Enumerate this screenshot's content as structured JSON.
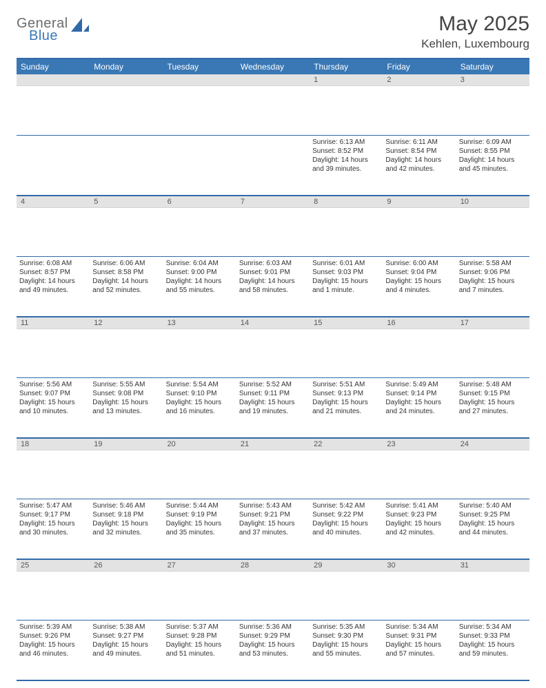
{
  "logo": {
    "top": "General",
    "bottom": "Blue"
  },
  "title": "May 2025",
  "location": "Kehlen, Luxembourg",
  "colors": {
    "headerBar": "#3a78b5",
    "headerText": "#ffffff",
    "gridLine": "#2f6aa8",
    "dayNumBg": "#e3e3e3",
    "dayNumText": "#555555",
    "bodyText": "#333333",
    "logoGray": "#6b6b6b",
    "logoBlue": "#3a78b5"
  },
  "weekdays": [
    "Sunday",
    "Monday",
    "Tuesday",
    "Wednesday",
    "Thursday",
    "Friday",
    "Saturday"
  ],
  "weeks": [
    [
      null,
      null,
      null,
      null,
      {
        "n": "1",
        "sr": "6:13 AM",
        "ss": "8:52 PM",
        "dl": "14 hours and 39 minutes."
      },
      {
        "n": "2",
        "sr": "6:11 AM",
        "ss": "8:54 PM",
        "dl": "14 hours and 42 minutes."
      },
      {
        "n": "3",
        "sr": "6:09 AM",
        "ss": "8:55 PM",
        "dl": "14 hours and 45 minutes."
      }
    ],
    [
      {
        "n": "4",
        "sr": "6:08 AM",
        "ss": "8:57 PM",
        "dl": "14 hours and 49 minutes."
      },
      {
        "n": "5",
        "sr": "6:06 AM",
        "ss": "8:58 PM",
        "dl": "14 hours and 52 minutes."
      },
      {
        "n": "6",
        "sr": "6:04 AM",
        "ss": "9:00 PM",
        "dl": "14 hours and 55 minutes."
      },
      {
        "n": "7",
        "sr": "6:03 AM",
        "ss": "9:01 PM",
        "dl": "14 hours and 58 minutes."
      },
      {
        "n": "8",
        "sr": "6:01 AM",
        "ss": "9:03 PM",
        "dl": "15 hours and 1 minute."
      },
      {
        "n": "9",
        "sr": "6:00 AM",
        "ss": "9:04 PM",
        "dl": "15 hours and 4 minutes."
      },
      {
        "n": "10",
        "sr": "5:58 AM",
        "ss": "9:06 PM",
        "dl": "15 hours and 7 minutes."
      }
    ],
    [
      {
        "n": "11",
        "sr": "5:56 AM",
        "ss": "9:07 PM",
        "dl": "15 hours and 10 minutes."
      },
      {
        "n": "12",
        "sr": "5:55 AM",
        "ss": "9:08 PM",
        "dl": "15 hours and 13 minutes."
      },
      {
        "n": "13",
        "sr": "5:54 AM",
        "ss": "9:10 PM",
        "dl": "15 hours and 16 minutes."
      },
      {
        "n": "14",
        "sr": "5:52 AM",
        "ss": "9:11 PM",
        "dl": "15 hours and 19 minutes."
      },
      {
        "n": "15",
        "sr": "5:51 AM",
        "ss": "9:13 PM",
        "dl": "15 hours and 21 minutes."
      },
      {
        "n": "16",
        "sr": "5:49 AM",
        "ss": "9:14 PM",
        "dl": "15 hours and 24 minutes."
      },
      {
        "n": "17",
        "sr": "5:48 AM",
        "ss": "9:15 PM",
        "dl": "15 hours and 27 minutes."
      }
    ],
    [
      {
        "n": "18",
        "sr": "5:47 AM",
        "ss": "9:17 PM",
        "dl": "15 hours and 30 minutes."
      },
      {
        "n": "19",
        "sr": "5:46 AM",
        "ss": "9:18 PM",
        "dl": "15 hours and 32 minutes."
      },
      {
        "n": "20",
        "sr": "5:44 AM",
        "ss": "9:19 PM",
        "dl": "15 hours and 35 minutes."
      },
      {
        "n": "21",
        "sr": "5:43 AM",
        "ss": "9:21 PM",
        "dl": "15 hours and 37 minutes."
      },
      {
        "n": "22",
        "sr": "5:42 AM",
        "ss": "9:22 PM",
        "dl": "15 hours and 40 minutes."
      },
      {
        "n": "23",
        "sr": "5:41 AM",
        "ss": "9:23 PM",
        "dl": "15 hours and 42 minutes."
      },
      {
        "n": "24",
        "sr": "5:40 AM",
        "ss": "9:25 PM",
        "dl": "15 hours and 44 minutes."
      }
    ],
    [
      {
        "n": "25",
        "sr": "5:39 AM",
        "ss": "9:26 PM",
        "dl": "15 hours and 46 minutes."
      },
      {
        "n": "26",
        "sr": "5:38 AM",
        "ss": "9:27 PM",
        "dl": "15 hours and 49 minutes."
      },
      {
        "n": "27",
        "sr": "5:37 AM",
        "ss": "9:28 PM",
        "dl": "15 hours and 51 minutes."
      },
      {
        "n": "28",
        "sr": "5:36 AM",
        "ss": "9:29 PM",
        "dl": "15 hours and 53 minutes."
      },
      {
        "n": "29",
        "sr": "5:35 AM",
        "ss": "9:30 PM",
        "dl": "15 hours and 55 minutes."
      },
      {
        "n": "30",
        "sr": "5:34 AM",
        "ss": "9:31 PM",
        "dl": "15 hours and 57 minutes."
      },
      {
        "n": "31",
        "sr": "5:34 AM",
        "ss": "9:33 PM",
        "dl": "15 hours and 59 minutes."
      }
    ]
  ],
  "labels": {
    "sunrise": "Sunrise:",
    "sunset": "Sunset:",
    "daylight": "Daylight:"
  }
}
